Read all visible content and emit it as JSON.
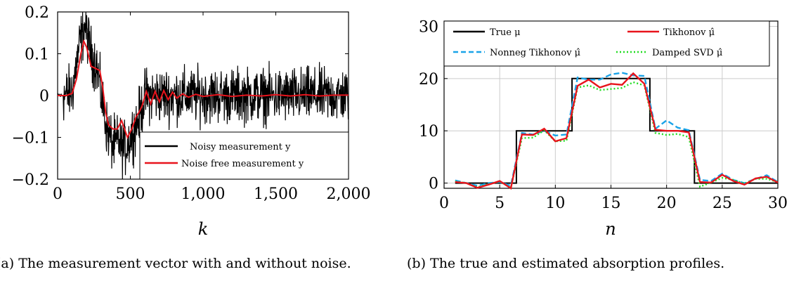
{
  "captions": {
    "left": "(a) The measurement vector with and without noise.",
    "right": "(b) The true and estimated absorption profiles."
  },
  "chart_data": [
    {
      "type": "line",
      "title": "",
      "xlabel": "k",
      "ylabel": "",
      "xlim": [
        0,
        2000
      ],
      "ylim": [
        -0.2,
        0.2
      ],
      "xticks": [
        0,
        500,
        1000,
        1500,
        2000
      ],
      "xtick_labels": [
        "0",
        "500",
        "1,000",
        "1,500",
        "2,000"
      ],
      "yticks": [
        -0.2,
        -0.1,
        0,
        0.1,
        0.2
      ],
      "ytick_labels": [
        "−0.2",
        "−0.1",
        "0",
        "0.1",
        "0.2"
      ],
      "grid": false,
      "legend_position": "bottom-right",
      "series": [
        {
          "name": "Noisy measurement y",
          "color": "#000000",
          "style": "solid",
          "noise_amplitude": 0.04,
          "x": [
            0,
            50,
            100,
            150,
            190,
            230,
            270,
            300,
            340,
            380,
            420,
            460,
            500,
            540,
            580,
            600,
            2000
          ],
          "values": [
            0,
            0,
            0.01,
            0.12,
            0.17,
            0.1,
            0.07,
            0.0,
            -0.08,
            -0.12,
            -0.11,
            -0.13,
            -0.1,
            -0.07,
            -0.03,
            0.0,
            0.0
          ]
        },
        {
          "name": "Noise free measurement y",
          "color": "#e8141c",
          "style": "solid",
          "x": [
            0,
            60,
            100,
            130,
            160,
            180,
            200,
            230,
            260,
            290,
            310,
            330,
            350,
            380,
            410,
            440,
            460,
            480,
            510,
            540,
            560,
            580,
            610,
            640,
            670,
            700,
            730,
            760,
            790,
            820,
            860,
            900,
            950,
            1000,
            1100,
            1200,
            1300,
            1400,
            1500,
            1600,
            1700,
            1800,
            1900,
            2000
          ],
          "values": [
            0,
            0,
            0.005,
            0.04,
            0.1,
            0.13,
            0.115,
            0.07,
            0.065,
            0.06,
            0.02,
            -0.04,
            -0.07,
            -0.08,
            -0.08,
            -0.06,
            -0.08,
            -0.1,
            -0.08,
            -0.05,
            -0.04,
            -0.025,
            0.01,
            -0.02,
            0.01,
            -0.015,
            0.012,
            -0.01,
            0.008,
            -0.006,
            0.004,
            -0.004,
            0.003,
            -0.002,
            0.002,
            -0.002,
            0.001,
            -0.001,
            0.002,
            -0.001,
            0.002,
            -0.001,
            0.001,
            0.001
          ]
        }
      ]
    },
    {
      "type": "line",
      "title": "",
      "xlabel": "n",
      "ylabel": "",
      "xlim": [
        0,
        30
      ],
      "ylim": [
        -1,
        31
      ],
      "xticks": [
        0,
        5,
        10,
        15,
        20,
        25,
        30
      ],
      "xtick_labels": [
        "0",
        "5",
        "10",
        "15",
        "20",
        "25",
        "30"
      ],
      "yticks": [
        0,
        10,
        20,
        30
      ],
      "ytick_labels": [
        "0",
        "10",
        "20",
        "30"
      ],
      "grid": true,
      "legend_position": "top",
      "legend_columns": 2,
      "x": [
        1,
        2,
        3,
        4,
        5,
        6,
        7,
        8,
        9,
        10,
        11,
        12,
        13,
        14,
        15,
        16,
        17,
        18,
        19,
        20,
        21,
        22,
        23,
        24,
        25,
        26,
        27,
        28,
        29,
        30
      ],
      "series": [
        {
          "name": "True μ",
          "color": "#000000",
          "style": "solid",
          "step": true,
          "values": [
            0,
            0,
            0,
            0,
            0,
            0,
            10,
            10,
            10,
            10,
            10,
            20,
            20,
            20,
            20,
            20,
            20,
            20,
            10,
            10,
            10,
            10,
            0,
            0,
            0,
            0,
            0,
            0,
            0,
            0
          ]
        },
        {
          "name": "Tikhonov μ̂",
          "color": "#e8141c",
          "style": "solid",
          "values": [
            0.2,
            0,
            -0.9,
            -0.3,
            0.4,
            -1.0,
            9.3,
            9.2,
            10.4,
            8.0,
            8.6,
            18.6,
            19.8,
            18.3,
            19.0,
            18.8,
            21.0,
            19.0,
            10.2,
            10.0,
            10.0,
            9.7,
            0.2,
            0.1,
            1.6,
            0.4,
            -0.3,
            0.9,
            1.2,
            0.1
          ]
        },
        {
          "name": "Nonneg Tikhonov μ̂",
          "color": "#1aa3e8",
          "style": "dashed",
          "values": [
            0.5,
            0,
            -0.5,
            0,
            0.2,
            -0.5,
            9.6,
            9.3,
            10.0,
            9.1,
            9.3,
            20.2,
            19.8,
            19.8,
            20.8,
            21.1,
            20.6,
            20.5,
            10.4,
            12.0,
            10.6,
            10.1,
            0.6,
            0.4,
            1.8,
            0.6,
            0.0,
            0.8,
            1.5,
            0.2
          ]
        },
        {
          "name": "Damped SVD μ̂",
          "color": "#22dd22",
          "style": "dotted",
          "values": [
            0.3,
            0,
            -0.8,
            -0.2,
            0.3,
            -0.9,
            8.6,
            8.7,
            10.1,
            8.0,
            8.1,
            18.3,
            18.7,
            17.8,
            18.0,
            18.2,
            19.3,
            18.7,
            9.6,
            9.2,
            9.4,
            8.8,
            -0.7,
            0.1,
            1.0,
            0.6,
            -0.1,
            0.8,
            0.8,
            0.2
          ]
        }
      ]
    }
  ]
}
